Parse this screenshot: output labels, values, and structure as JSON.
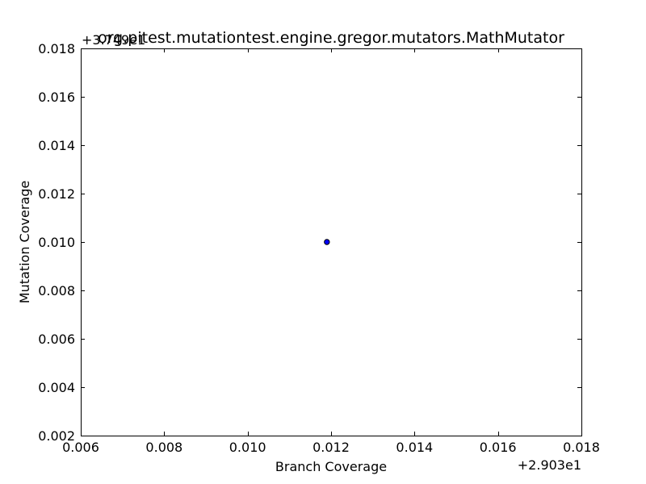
{
  "chart_data": {
    "type": "scatter",
    "title": "org.pitest.mutationtest.engine.gregor.mutators.MathMutator",
    "xlabel": "Branch Coverage",
    "ylabel": "Mutation Coverage",
    "x_offset_label": "+2.903e1",
    "y_offset_label": "+3.749e1",
    "xlim": [
      0.006,
      0.018
    ],
    "ylim": [
      0.002,
      0.018
    ],
    "x_ticks": [
      0.006,
      0.008,
      0.01,
      0.012,
      0.014,
      0.016,
      0.018
    ],
    "x_tick_labels": [
      "0.006",
      "0.008",
      "0.010",
      "0.012",
      "0.014",
      "0.016",
      "0.018"
    ],
    "y_ticks": [
      0.002,
      0.004,
      0.006,
      0.008,
      0.01,
      0.012,
      0.014,
      0.016,
      0.018
    ],
    "y_tick_labels": [
      "0.002",
      "0.004",
      "0.006",
      "0.008",
      "0.010",
      "0.012",
      "0.014",
      "0.016",
      "0.018"
    ],
    "grid": false,
    "series": [
      {
        "name": "MathMutator",
        "x": [
          0.0119
        ],
        "y": [
          0.01
        ],
        "color": "#0000ff",
        "edgecolor": "#000000"
      }
    ]
  }
}
